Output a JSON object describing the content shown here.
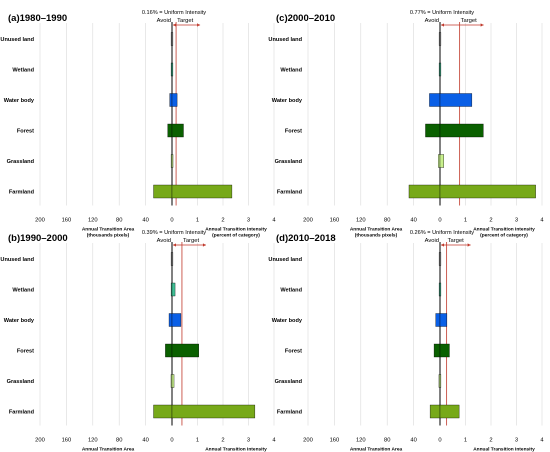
{
  "chart_data": [
    {
      "type": "bar",
      "title": "(a)1980–1990",
      "categories": [
        "Unused land",
        "Wetland",
        "Water body",
        "Forest",
        "Grassland",
        "Farmland"
      ],
      "series": [
        {
          "name": "Annual Transition Area",
          "values": [
            0.1,
            0.4,
            3.5,
            6.5,
            0.3,
            28
          ]
        },
        {
          "name": "Annual Transition Intensity",
          "values": [
            0.01,
            0.02,
            0.2,
            0.45,
            0.04,
            2.35
          ]
        }
      ],
      "uniform_intensity": 0.16,
      "uniform_label": "0.16% = Uniform Intensity",
      "area_axis": {
        "ticks": [
          200,
          160,
          120,
          80,
          40,
          0
        ],
        "lim": [
          0,
          200
        ]
      },
      "intensity_axis": {
        "ticks": [
          0,
          1,
          2,
          3,
          4
        ],
        "lim": [
          0,
          4
        ]
      }
    },
    {
      "type": "bar",
      "title": "(c)2000–2010",
      "categories": [
        "Unused land",
        "Wetland",
        "Water body",
        "Forest",
        "Grassland",
        "Farmland"
      ],
      "series": [
        {
          "name": "Annual Transition Area",
          "values": [
            0.1,
            0.5,
            16,
            22,
            2.5,
            47
          ]
        },
        {
          "name": "Annual Transition Intensity",
          "values": [
            0.01,
            0.03,
            1.25,
            1.7,
            0.15,
            3.75
          ]
        }
      ],
      "uniform_intensity": 0.77,
      "uniform_label": "0.77% = Uniform Intensity",
      "area_axis": {
        "ticks": [
          200,
          160,
          120,
          80,
          40,
          0
        ],
        "lim": [
          0,
          200
        ]
      },
      "intensity_axis": {
        "ticks": [
          0,
          1,
          2,
          3,
          4
        ],
        "lim": [
          0,
          4
        ]
      }
    },
    {
      "type": "bar",
      "title": "(b)1990–2000",
      "categories": [
        "Unused land",
        "Wetland",
        "Water body",
        "Forest",
        "Grassland",
        "Farmland"
      ],
      "series": [
        {
          "name": "Annual Transition Area",
          "values": [
            0.2,
            1.3,
            4.5,
            10,
            1.5,
            28
          ]
        },
        {
          "name": "Annual Transition Intensity",
          "values": [
            0.02,
            0.12,
            0.35,
            1.05,
            0.08,
            3.25
          ]
        }
      ],
      "uniform_intensity": 0.39,
      "uniform_label": "0.39% = Uniform Intensity",
      "area_axis": {
        "ticks": [
          200,
          160,
          120,
          80,
          40,
          0
        ],
        "lim": [
          0,
          200
        ]
      },
      "intensity_axis": {
        "ticks": [
          0,
          1,
          2,
          3,
          4
        ],
        "lim": [
          0,
          4
        ]
      }
    },
    {
      "type": "bar",
      "title": "(d)2010–2018",
      "categories": [
        "Unused land",
        "Wetland",
        "Water body",
        "Forest",
        "Grassland",
        "Farmland"
      ],
      "series": [
        {
          "name": "Annual Transition Area",
          "values": [
            0.1,
            0.3,
            6.5,
            9,
            1.6,
            15
          ]
        },
        {
          "name": "Annual Transition Intensity",
          "values": [
            0.01,
            0.03,
            0.27,
            0.37,
            0.02,
            0.75
          ]
        }
      ],
      "uniform_intensity": 0.26,
      "uniform_label": "0.26% = Uniform Intensity",
      "area_axis": {
        "ticks": [
          200,
          160,
          120,
          80,
          40,
          0
        ],
        "lim": [
          0,
          200
        ]
      },
      "intensity_axis": {
        "ticks": [
          0,
          1,
          2,
          3,
          4
        ],
        "lim": [
          0,
          4
        ]
      }
    }
  ],
  "labels": {
    "avoid": "Avoid",
    "target": "Target",
    "area_axis_title": "Annual Transition Area",
    "area_axis_unit": "(thousands pixels)",
    "intensity_axis_title": "Annual Transition Intensity",
    "intensity_axis_unit": "(percent of category)"
  },
  "colors": {
    "Unused land": "#9b9b9b",
    "Wetland": "#3fbf95",
    "Water body": "#0a5fe6",
    "Forest": "#0a6000",
    "Grassland": "#c8f08c",
    "Farmland": "#77a919",
    "uniform_line": "#c0392b",
    "axis_line": "#000000",
    "grid": "#d9d9d9"
  }
}
